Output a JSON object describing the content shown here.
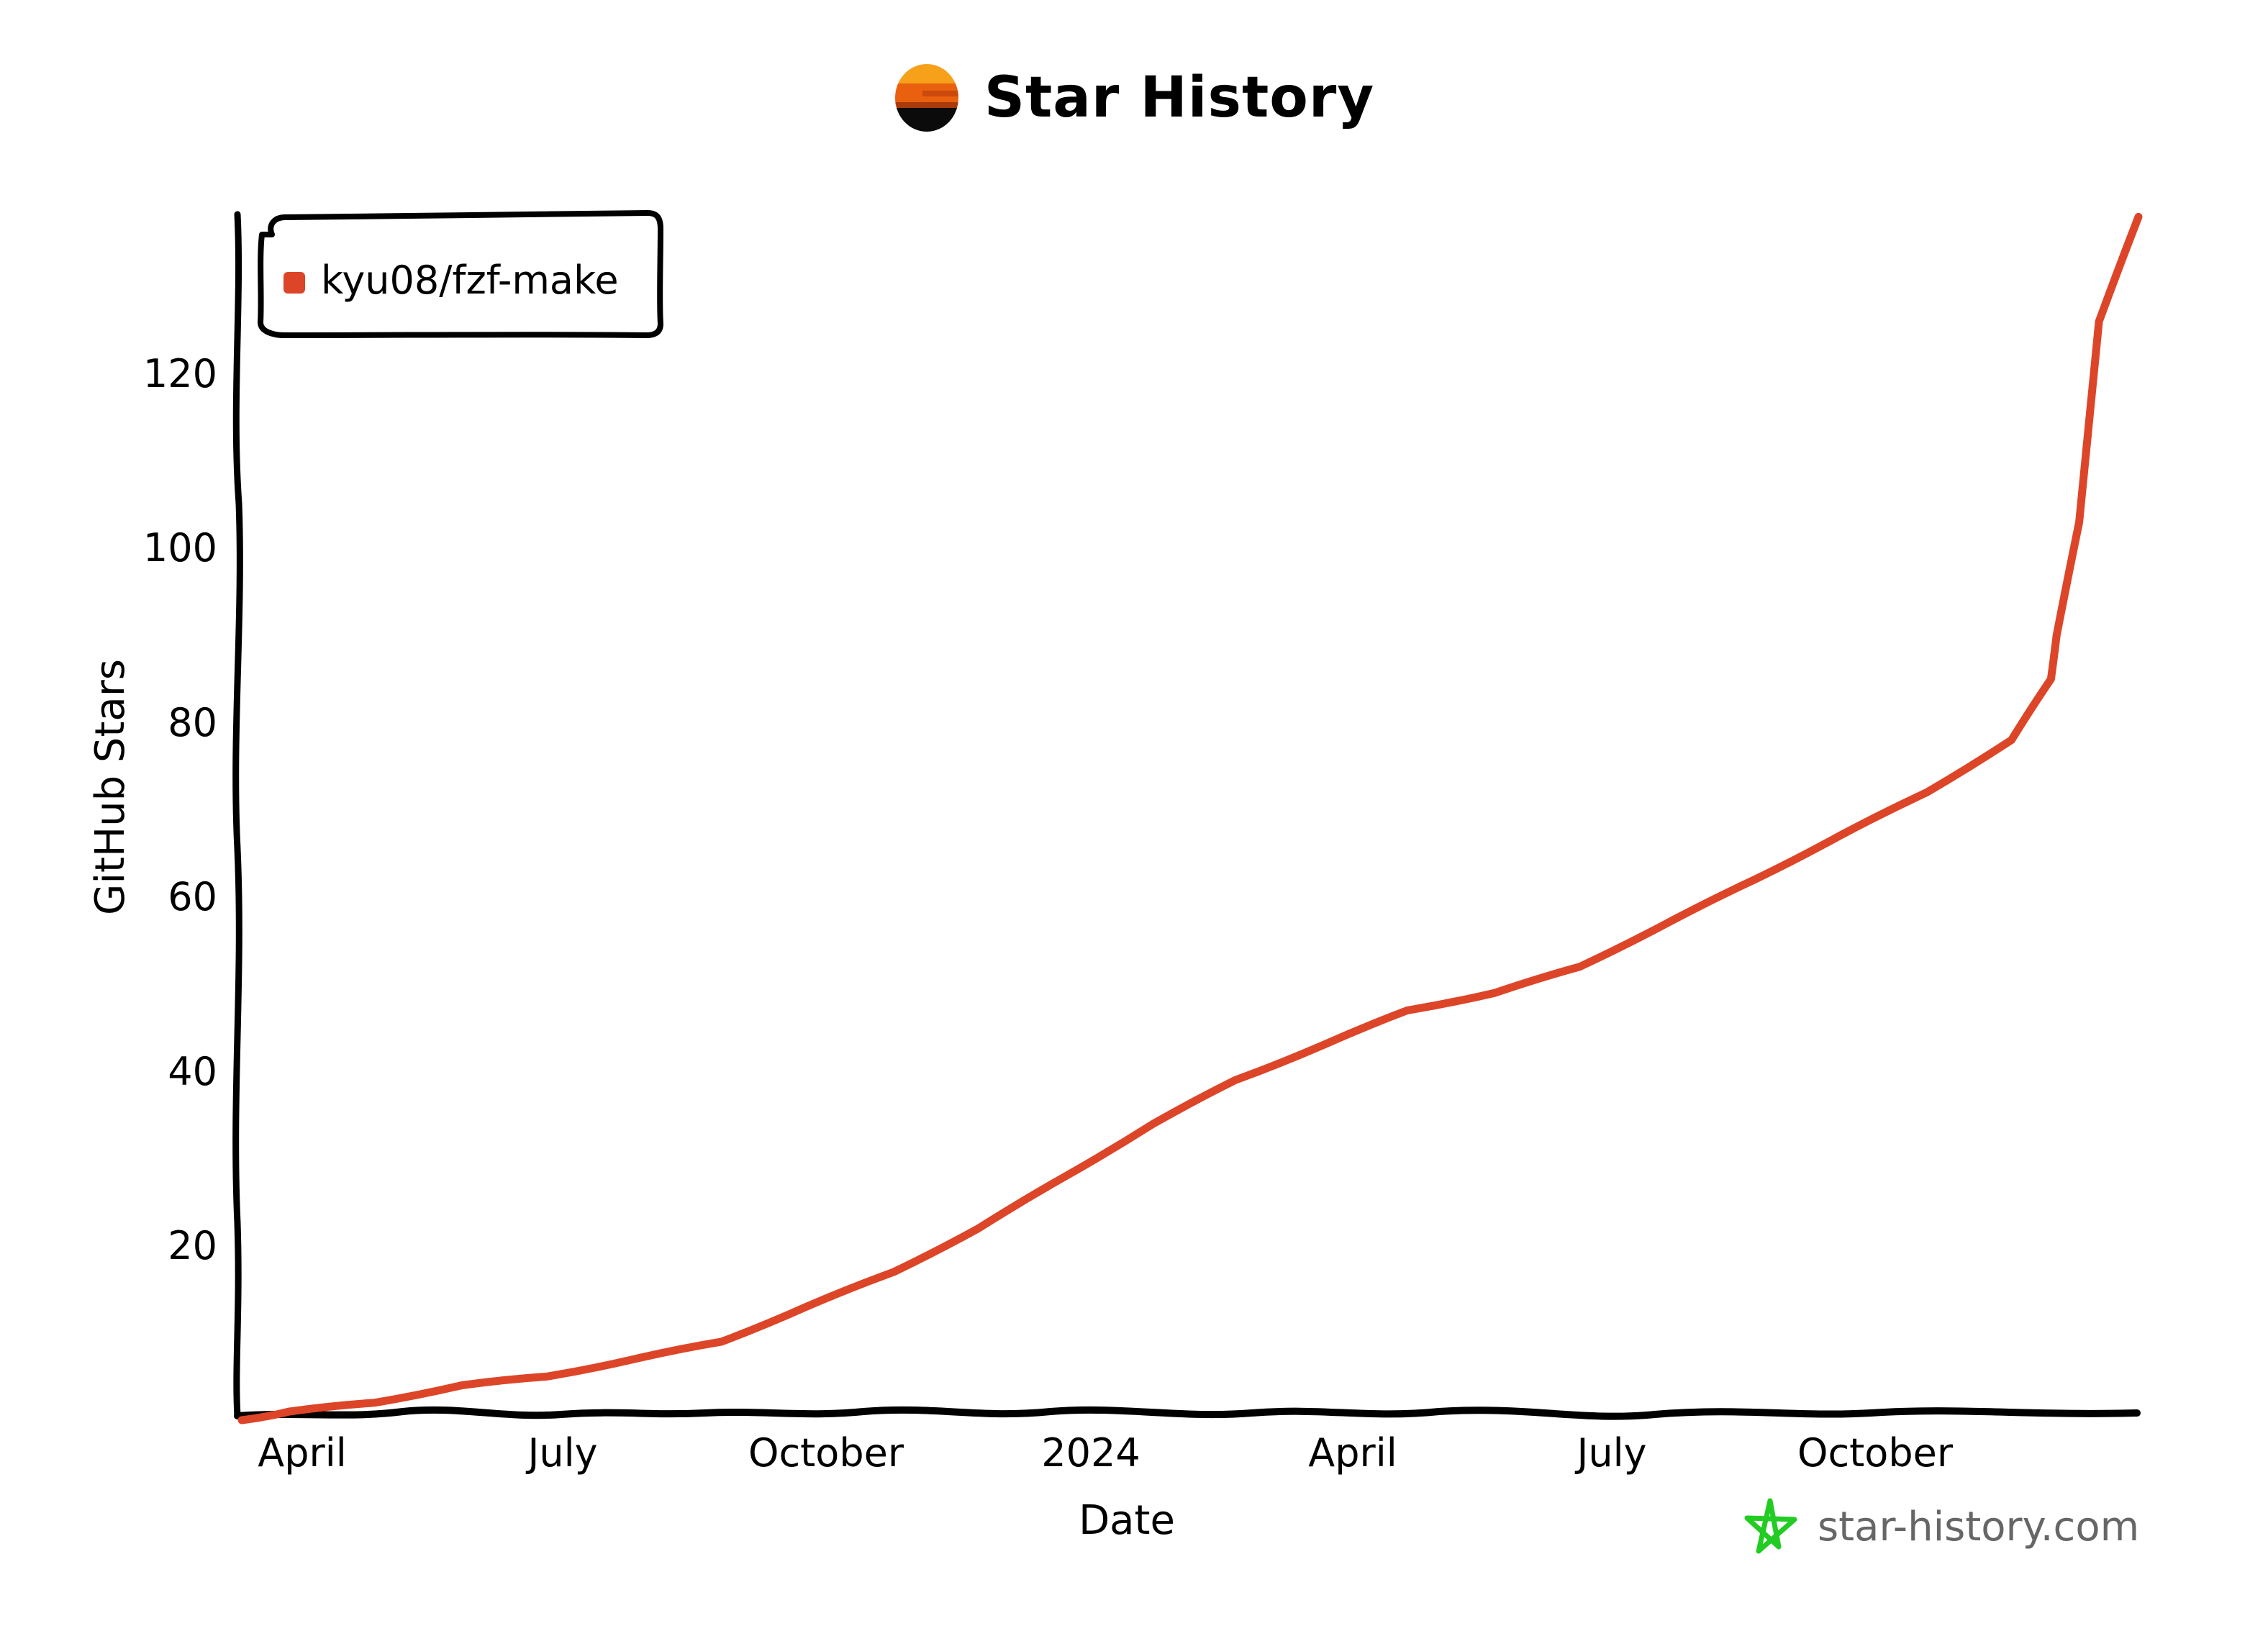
{
  "header": {
    "title": "Star History",
    "logo_icon": "sunset-logo-icon"
  },
  "watermark": {
    "text": "star-history.com",
    "icon": "star-outline-icon",
    "icon_color": "#22cc22"
  },
  "colors": {
    "series": "#dd4528",
    "axis": "#000000",
    "watermark_text": "#666666"
  },
  "chart_data": {
    "type": "line",
    "title": "Star History",
    "xlabel": "Date",
    "ylabel": "GitHub Stars",
    "x_tick_labels": [
      "April",
      "July",
      "October",
      "2024",
      "April",
      "July",
      "October"
    ],
    "y_tick_labels": [
      "20",
      "40",
      "60",
      "80",
      "100",
      "120"
    ],
    "y_ticks": [
      20,
      40,
      60,
      80,
      100,
      120
    ],
    "ylim": [
      0,
      139
    ],
    "grid": false,
    "legend_position": "top-left",
    "style": "hand-drawn (xkcd)",
    "series": [
      {
        "name": "kyu08/fzf-make",
        "color": "#dd4528",
        "x": [
          "2023-03-15",
          "2023-04-01",
          "2023-05-01",
          "2023-06-01",
          "2023-07-01",
          "2023-08-01",
          "2023-09-01",
          "2023-10-01",
          "2023-11-01",
          "2023-12-01",
          "2024-01-01",
          "2024-02-01",
          "2024-03-01",
          "2024-04-01",
          "2024-05-01",
          "2024-06-01",
          "2024-07-01",
          "2024-08-01",
          "2024-09-01",
          "2024-10-01",
          "2024-11-01",
          "2024-12-01",
          "2024-12-15",
          "2024-12-17",
          "2024-12-25",
          "2025-01-01",
          "2025-01-15"
        ],
        "values": [
          0,
          1,
          2,
          4,
          5,
          7,
          9,
          13,
          17,
          22,
          28,
          34,
          39,
          43,
          47,
          49,
          52,
          57,
          62,
          67,
          72,
          78,
          85,
          90,
          103,
          126,
          138
        ]
      }
    ]
  }
}
